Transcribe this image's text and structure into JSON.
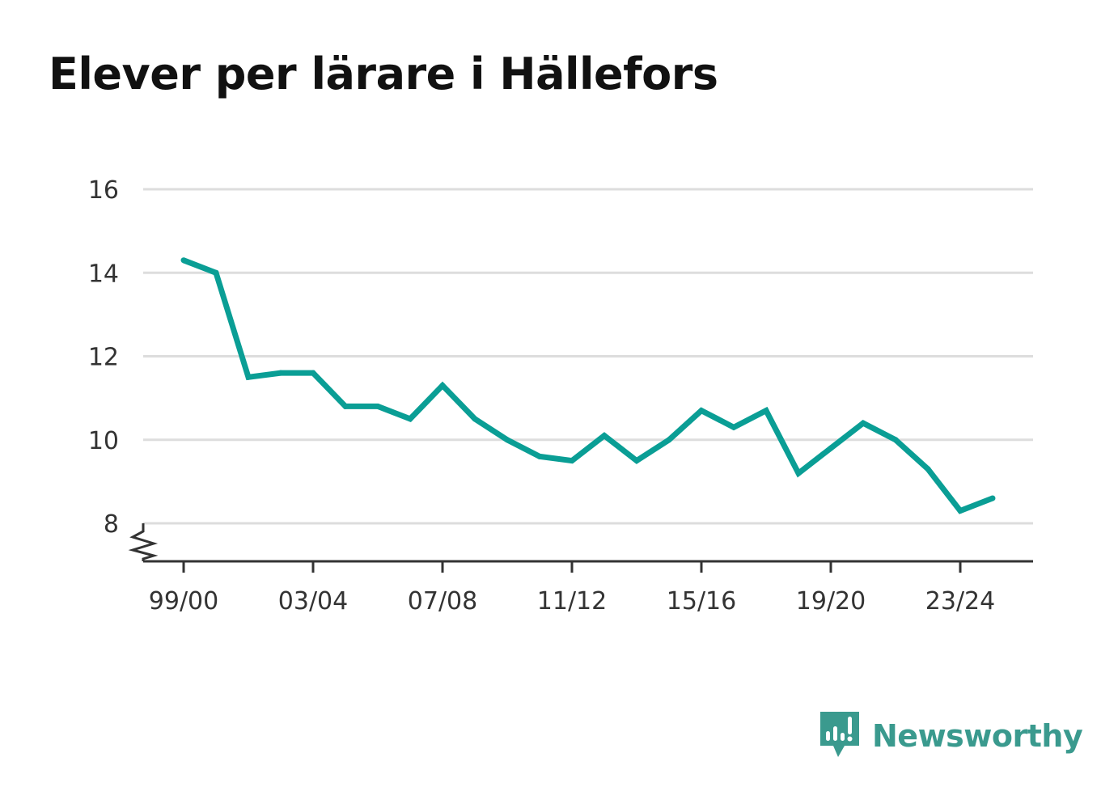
{
  "colors": {
    "line": "#0a9e95",
    "grid": "#dddddd",
    "axis": "#333333",
    "brand": "#3a9a8e"
  },
  "brand": {
    "name": "Newsworthy",
    "icon": "newsworthy-logo-icon"
  },
  "chart_data": {
    "type": "line",
    "title": "Elever per lärare i Hällefors",
    "xlabel": "",
    "ylabel": "",
    "ylim": [
      8,
      16
    ],
    "yticks": [
      8,
      10,
      12,
      14,
      16
    ],
    "y_axis_break": true,
    "grid": true,
    "x": [
      "99/00",
      "00/01",
      "01/02",
      "02/03",
      "03/04",
      "04/05",
      "05/06",
      "06/07",
      "07/08",
      "08/09",
      "09/10",
      "10/11",
      "11/12",
      "12/13",
      "13/14",
      "14/15",
      "15/16",
      "16/17",
      "17/18",
      "18/19",
      "19/20",
      "20/21",
      "21/22",
      "22/23",
      "23/24",
      "24/25"
    ],
    "xtick_labels": [
      "99/00",
      "03/04",
      "07/08",
      "11/12",
      "15/16",
      "19/20",
      "23/24"
    ],
    "series": [
      {
        "values": [
          14.3,
          14.0,
          11.5,
          11.6,
          11.6,
          10.8,
          10.8,
          10.5,
          11.3,
          10.5,
          10.0,
          9.6,
          9.5,
          10.1,
          9.5,
          10.0,
          10.7,
          10.3,
          10.7,
          9.2,
          9.8,
          10.4,
          10.0,
          9.3,
          8.3,
          8.6
        ]
      }
    ]
  }
}
